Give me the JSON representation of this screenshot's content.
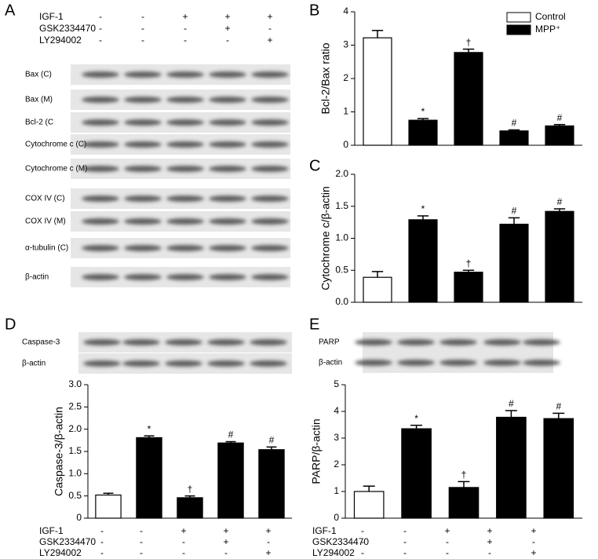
{
  "panel_labels": [
    "A",
    "B",
    "C",
    "D",
    "E"
  ],
  "treatments": [
    {
      "name": "IGF-1",
      "signs": [
        "-",
        "-",
        "+",
        "+",
        "+"
      ]
    },
    {
      "name": "GSK2334470",
      "signs": [
        "-",
        "-",
        "-",
        "+",
        "-"
      ]
    },
    {
      "name": "LY294002",
      "signs": [
        "-",
        "-",
        "-",
        "-",
        "+"
      ]
    }
  ],
  "blots_a": [
    "Bax (C)",
    "Bax (M)",
    "Bcl-2 (C",
    "Cytochrome c (C)",
    "Cytochrome c (M)",
    "COX IV (C)",
    "COX IV (M)",
    "α-tubulin (C)",
    "β-actin"
  ],
  "blots_d": [
    "Caspase-3",
    "β-actin"
  ],
  "blots_e": [
    "PARP",
    "β-actin"
  ],
  "chart_data": [
    {
      "type": "bar",
      "ylabel": "Bcl-2/Bax ratio",
      "values": [
        3.22,
        0.75,
        2.78,
        0.43,
        0.58
      ],
      "errors": [
        0.22,
        0.05,
        0.1,
        0.03,
        0.04
      ],
      "annotations": [
        null,
        "*",
        "†",
        "#",
        "#"
      ],
      "colors": [
        "#ffffff",
        "#000000",
        "#000000",
        "#000000",
        "#000000"
      ],
      "ylim": [
        0,
        4
      ],
      "yticks": [
        0,
        1,
        2,
        3,
        4
      ],
      "legend": [
        {
          "name": "Control",
          "color": "#ffffff"
        },
        {
          "name": "MPP⁺",
          "color": "#000000"
        }
      ]
    },
    {
      "type": "bar",
      "ylabel": "Cytochrome c/β-actin",
      "values": [
        0.39,
        1.29,
        0.47,
        1.22,
        1.42
      ],
      "errors": [
        0.09,
        0.06,
        0.03,
        0.1,
        0.04
      ],
      "annotations": [
        null,
        "*",
        "†",
        "#",
        "#"
      ],
      "colors": [
        "#ffffff",
        "#000000",
        "#000000",
        "#000000",
        "#000000"
      ],
      "ylim": [
        0,
        2
      ],
      "yticks": [
        {
          "value": 0,
          "label": "0.0"
        },
        0.5,
        {
          "value": 1,
          "label": "1.0"
        },
        1.5,
        {
          "value": 2,
          "label": "2.0"
        }
      ]
    },
    {
      "type": "bar",
      "ylabel": "Caspase-3/β-actin",
      "values": [
        0.52,
        1.81,
        0.46,
        1.69,
        1.54
      ],
      "errors": [
        0.04,
        0.04,
        0.04,
        0.03,
        0.06
      ],
      "annotations": [
        null,
        "*",
        "†",
        "#",
        "#"
      ],
      "colors": [
        "#ffffff",
        "#000000",
        "#000000",
        "#000000",
        "#000000"
      ],
      "ylim": [
        0,
        3
      ],
      "yticks": [
        0,
        0.5,
        {
          "value": 1,
          "label": "1.0"
        },
        1.5,
        {
          "value": 2,
          "label": "2.0"
        },
        2.5,
        {
          "value": 3,
          "label": "3.0"
        }
      ]
    },
    {
      "type": "bar",
      "ylabel": "PARP/β-actin",
      "values": [
        1.0,
        3.35,
        1.15,
        3.78,
        3.73
      ],
      "errors": [
        0.2,
        0.13,
        0.22,
        0.25,
        0.2
      ],
      "annotations": [
        null,
        "*",
        "†",
        "#",
        "#"
      ],
      "colors": [
        "#ffffff",
        "#000000",
        "#000000",
        "#000000",
        "#000000"
      ],
      "ylim": [
        0,
        5
      ],
      "yticks": [
        0,
        1,
        2,
        3,
        4,
        5
      ]
    }
  ]
}
